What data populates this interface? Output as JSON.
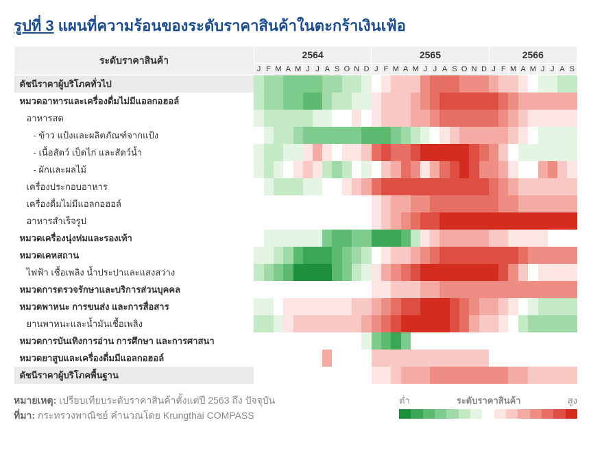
{
  "title_prefix": "รูปที่ 3",
  "title_main": "แผนที่ความร้อนของระดับราคาสินค้าในตะกร้าเงินเฟ้อ",
  "category_header": "ระดับราคาสินค้า",
  "years": [
    "2564",
    "2565",
    "2566"
  ],
  "months": [
    "J",
    "F",
    "M",
    "A",
    "M",
    "J",
    "J",
    "A",
    "S",
    "O",
    "N",
    "D",
    "J",
    "F",
    "M",
    "A",
    "M",
    "J",
    "J",
    "A",
    "S",
    "O",
    "N",
    "D",
    "J",
    "F",
    "M",
    "A",
    "M",
    "J",
    "J",
    "A",
    "S"
  ],
  "color_scale": [
    "#1b8f3a",
    "#3aa754",
    "#5cbb71",
    "#7ecb8e",
    "#a0daa9",
    "#c3e9c5",
    "#e4f5e3",
    "#ffffff",
    "#fce5e3",
    "#f8c9c4",
    "#f3aba4",
    "#ed8d84",
    "#e66e63",
    "#de4e42",
    "#d42d20"
  ],
  "rows": [
    {
      "label": "ดัชนีราคาผู้บริโภคทั่วไป",
      "bold": true,
      "indent": 0,
      "hl": true,
      "v": [
        5,
        4,
        4,
        3,
        3,
        3,
        3,
        4,
        4,
        5,
        5,
        6,
        7,
        8,
        9,
        9,
        9,
        11,
        12,
        12,
        12,
        11,
        11,
        11,
        10,
        9,
        9,
        8,
        7,
        6,
        6,
        5,
        5
      ]
    },
    {
      "label": "หมวดอาหารและเครื่องดื่มไม่มีแอลกอฮอล์",
      "bold": true,
      "indent": 0,
      "v": [
        5,
        4,
        4,
        3,
        3,
        2,
        2,
        4,
        5,
        5,
        6,
        6,
        8,
        9,
        9,
        9,
        10,
        11,
        12,
        13,
        13,
        13,
        13,
        13,
        13,
        12,
        11,
        10,
        10,
        10,
        10,
        10,
        10
      ]
    },
    {
      "label": "อาหารสด",
      "bold": false,
      "indent": 1,
      "v": [
        6,
        5,
        5,
        5,
        5,
        5,
        6,
        6,
        7,
        7,
        8,
        7,
        8,
        9,
        9,
        9,
        10,
        10,
        11,
        12,
        12,
        12,
        12,
        12,
        12,
        11,
        10,
        9,
        8,
        8,
        8,
        8,
        8
      ]
    },
    {
      "label": "- ข้าว แป้งและผลิตภัณฑ์จากแป้ง",
      "bold": false,
      "indent": 2,
      "v": [
        7,
        6,
        5,
        5,
        4,
        3,
        3,
        3,
        3,
        3,
        3,
        2,
        2,
        2,
        3,
        4,
        5,
        6,
        7,
        8,
        9,
        10,
        10,
        10,
        10,
        10,
        9,
        8,
        7,
        6,
        6,
        6,
        6
      ]
    },
    {
      "label": "- เนื้อสัตว์ เป็ดไก่ และสัตว์น้ำ",
      "bold": false,
      "indent": 2,
      "v": [
        6,
        5,
        5,
        6,
        6,
        8,
        10,
        8,
        7,
        8,
        8,
        9,
        12,
        13,
        12,
        12,
        13,
        14,
        14,
        14,
        14,
        14,
        13,
        12,
        11,
        9,
        7,
        6,
        6,
        6,
        6,
        6,
        6
      ]
    },
    {
      "label": "- ผักและผลไม้",
      "bold": false,
      "indent": 2,
      "v": [
        6,
        5,
        6,
        7,
        8,
        9,
        8,
        5,
        4,
        5,
        7,
        6,
        7,
        9,
        10,
        12,
        11,
        8,
        10,
        12,
        13,
        14,
        13,
        11,
        11,
        10,
        8,
        7,
        7,
        10,
        11,
        9,
        8
      ]
    },
    {
      "label": "เครื่องประกอบอาหาร",
      "bold": false,
      "indent": 1,
      "v": [
        7,
        6,
        5,
        5,
        5,
        6,
        6,
        7,
        7,
        8,
        9,
        10,
        12,
        13,
        13,
        13,
        13,
        13,
        13,
        13,
        13,
        13,
        13,
        13,
        12,
        11,
        10,
        9,
        9,
        9,
        9,
        9,
        9
      ]
    },
    {
      "label": "เครื่องดื่มไม่มีแอลกอฮอล์",
      "bold": false,
      "indent": 1,
      "v": [
        7,
        7,
        7,
        7,
        7,
        7,
        7,
        7,
        7,
        7,
        7,
        7,
        8,
        9,
        10,
        10,
        11,
        11,
        12,
        12,
        12,
        12,
        12,
        12,
        12,
        11,
        11,
        10,
        10,
        10,
        10,
        10,
        10
      ]
    },
    {
      "label": "อาหารสำเร็จรูป",
      "bold": false,
      "indent": 1,
      "v": [
        7,
        7,
        7,
        7,
        7,
        7,
        7,
        7,
        7,
        7,
        7,
        7,
        8,
        9,
        10,
        11,
        12,
        13,
        13,
        14,
        14,
        14,
        14,
        14,
        14,
        14,
        14,
        14,
        14,
        14,
        14,
        14,
        14
      ]
    },
    {
      "label": "หมวดเครื่องนุ่งห่มและรองเท้า",
      "bold": true,
      "indent": 0,
      "v": [
        7,
        6,
        6,
        6,
        6,
        6,
        6,
        3,
        2,
        2,
        3,
        3,
        1,
        1,
        1,
        2,
        5,
        8,
        9,
        10,
        10,
        10,
        10,
        10,
        9,
        9,
        8,
        8,
        8,
        8,
        7,
        7,
        7
      ]
    },
    {
      "label": "หมวดเคหสถาน",
      "bold": true,
      "indent": 0,
      "v": [
        6,
        6,
        5,
        4,
        2,
        1,
        1,
        1,
        2,
        3,
        4,
        5,
        7,
        8,
        9,
        9,
        10,
        11,
        12,
        13,
        13,
        13,
        13,
        13,
        13,
        13,
        13,
        12,
        11,
        11,
        11,
        11,
        11
      ]
    },
    {
      "label": "ไฟฟ้า เชื้อเพลิง น้ำประปาและแสงสว่าง",
      "bold": false,
      "indent": 1,
      "v": [
        5,
        4,
        3,
        2,
        0,
        0,
        0,
        0,
        2,
        3,
        5,
        6,
        8,
        10,
        11,
        12,
        13,
        14,
        14,
        14,
        14,
        14,
        14,
        14,
        14,
        13,
        11,
        9,
        7,
        8,
        8,
        8,
        8
      ]
    },
    {
      "label": "หมวดการตรวจรักษาและบริการส่วนบุคคล",
      "bold": true,
      "indent": 0,
      "v": [
        7,
        7,
        7,
        7,
        7,
        7,
        7,
        7,
        7,
        7,
        7,
        7,
        8,
        8,
        9,
        9,
        9,
        10,
        10,
        11,
        11,
        11,
        11,
        11,
        11,
        11,
        11,
        11,
        11,
        11,
        11,
        11,
        11
      ]
    },
    {
      "label": "หมวดพาหนะ การขนส่ง และการสื่อสาร",
      "bold": true,
      "indent": 0,
      "v": [
        6,
        6,
        7,
        8,
        8,
        8,
        8,
        8,
        8,
        8,
        9,
        9,
        10,
        11,
        12,
        13,
        13,
        14,
        14,
        14,
        13,
        12,
        11,
        10,
        10,
        9,
        8,
        7,
        6,
        5,
        5,
        5,
        5
      ]
    },
    {
      "label": "ยานพาหนะและน้ำมันเชื้อเพลิง",
      "bold": false,
      "indent": 1,
      "v": [
        5,
        5,
        6,
        8,
        9,
        9,
        9,
        9,
        9,
        9,
        9,
        10,
        11,
        12,
        13,
        14,
        14,
        14,
        14,
        14,
        13,
        12,
        10,
        9,
        9,
        8,
        7,
        5,
        4,
        4,
        4,
        4,
        4
      ]
    },
    {
      "label": "หมวดการบันเทิงการอ่าน การศึกษา และการศาสนา",
      "bold": true,
      "indent": 0,
      "v": [
        7,
        7,
        7,
        7,
        7,
        7,
        7,
        7,
        7,
        7,
        7,
        6,
        3,
        2,
        1,
        3,
        7,
        7,
        7,
        7,
        7,
        7,
        7,
        7,
        7,
        7,
        7,
        7,
        7,
        7,
        7,
        7,
        7
      ]
    },
    {
      "label": "หมวดยาสูบและเครื่องดื่มมีแอลกอฮอล์",
      "bold": true,
      "indent": 0,
      "v": [
        7,
        7,
        7,
        7,
        7,
        7,
        7,
        10,
        7,
        7,
        7,
        7,
        9,
        9,
        9,
        9,
        9,
        9,
        9,
        9,
        9,
        9,
        9,
        9,
        7,
        7,
        7,
        7,
        7,
        7,
        7,
        7,
        7
      ]
    },
    {
      "label": "ดัชนีราคาผู้บริโภคพื้นฐาน",
      "bold": true,
      "indent": 0,
      "hl": true,
      "v": [
        7,
        7,
        7,
        7,
        7,
        7,
        7,
        7,
        7,
        7,
        7,
        7,
        8,
        8,
        9,
        10,
        10,
        10,
        11,
        11,
        11,
        11,
        11,
        11,
        11,
        11,
        10,
        10,
        9,
        9,
        9,
        9,
        9
      ]
    }
  ],
  "footer_note_label": "หมายเหตุ:",
  "footer_note": "เปรียบเทียบระดับราคาสินค้าตั้งแต่ปี 2563 ถึง ปัจจุบัน",
  "footer_source_label": "ที่มา:",
  "footer_source": "กระทรวงพาณิชย์ คำนวณโดย Krungthai COMPASS",
  "legend_low": "ต่ำ",
  "legend_title": "ระดับราคาสินค้า",
  "legend_high": "สูง"
}
